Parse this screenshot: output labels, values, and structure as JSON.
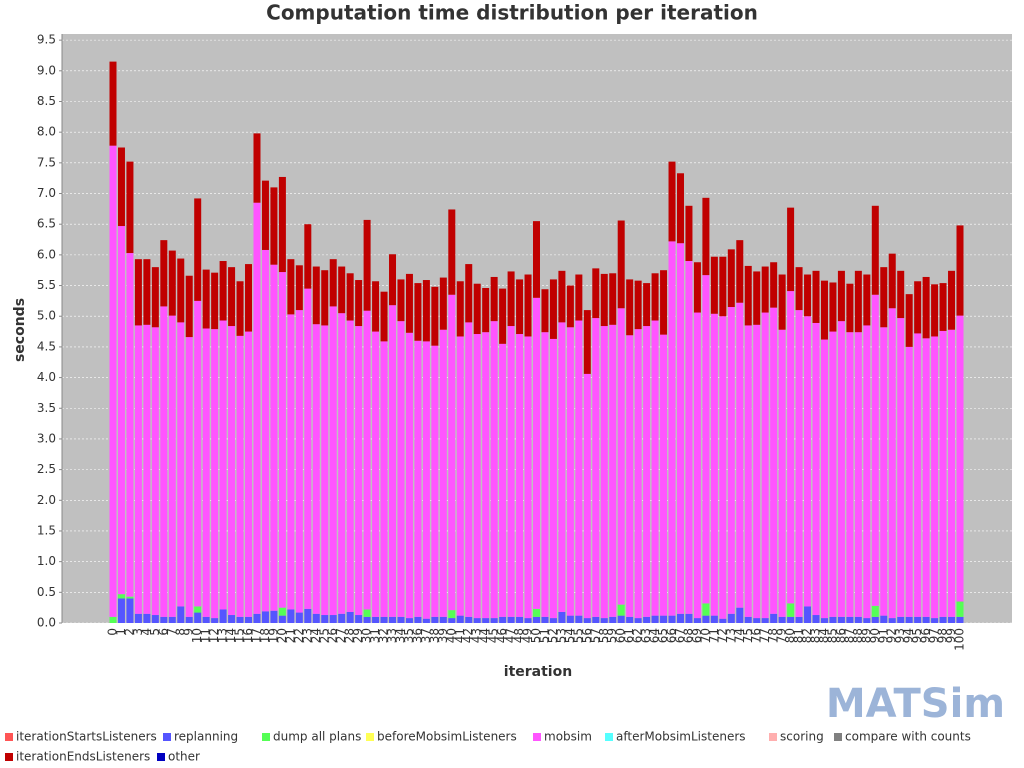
{
  "chart_data": {
    "type": "stacked_bar",
    "title": "Computation time distribution per iteration",
    "x_label": "iteration",
    "y_label": "seconds",
    "logo": "MATSim",
    "categories": [
      "0",
      "1",
      "2",
      "3",
      "4",
      "5",
      "6",
      "7",
      "8",
      "9",
      "10",
      "11",
      "12",
      "13",
      "14",
      "15",
      "16",
      "17",
      "18",
      "19",
      "20",
      "21",
      "22",
      "23",
      "24",
      "25",
      "26",
      "27",
      "28",
      "29",
      "30",
      "31",
      "32",
      "33",
      "34",
      "35",
      "36",
      "37",
      "38",
      "39",
      "40",
      "41",
      "42",
      "43",
      "44",
      "45",
      "46",
      "47",
      "48",
      "49",
      "50",
      "51",
      "52",
      "53",
      "54",
      "55",
      "56",
      "57",
      "58",
      "59",
      "60",
      "61",
      "62",
      "63",
      "64",
      "65",
      "66",
      "67",
      "68",
      "69",
      "70",
      "71",
      "72",
      "73",
      "74",
      "75",
      "76",
      "77",
      "78",
      "79",
      "80",
      "81",
      "82",
      "83",
      "84",
      "85",
      "86",
      "87",
      "88",
      "89",
      "90",
      "91",
      "92",
      "93",
      "94",
      "95",
      "96",
      "97",
      "98",
      "99",
      "100"
    ],
    "ylim": [
      0,
      9.6
    ],
    "yticks": [
      {
        "value": 0,
        "label": "0.0"
      },
      0.5,
      {
        "value": 1,
        "label": "1.0"
      },
      1.5,
      {
        "value": 2,
        "label": "2.0"
      },
      2.5,
      {
        "value": 3,
        "label": "3.0"
      },
      3.5,
      {
        "value": 4,
        "label": "4.0"
      },
      4.5,
      {
        "value": 5,
        "label": "5.0"
      },
      5.5,
      {
        "value": 6,
        "label": "6.0"
      },
      6.5,
      {
        "value": 7,
        "label": "7.0"
      },
      7.5,
      {
        "value": 8,
        "label": "8.0"
      },
      8.5,
      {
        "value": 9,
        "label": "9.0"
      },
      9.5
    ],
    "grid": true,
    "series": [
      {
        "name": "iterationStartsListeners",
        "color": "#ff5555",
        "values": [
          0,
          0,
          0,
          0,
          0,
          0,
          0,
          0,
          0,
          0,
          0,
          0,
          0,
          0,
          0,
          0,
          0,
          0,
          0,
          0,
          0,
          0,
          0,
          0,
          0,
          0,
          0,
          0,
          0,
          0,
          0,
          0,
          0,
          0,
          0,
          0,
          0,
          0,
          0,
          0,
          0,
          0,
          0,
          0,
          0,
          0,
          0,
          0,
          0,
          0,
          0,
          0,
          0,
          0,
          0,
          0,
          0,
          0,
          0,
          0,
          0,
          0,
          0,
          0,
          0,
          0,
          0,
          0,
          0,
          0,
          0,
          0,
          0,
          0,
          0,
          0,
          0,
          0,
          0,
          0,
          0,
          0,
          0,
          0,
          0,
          0,
          0,
          0,
          0,
          0,
          0,
          0,
          0,
          0,
          0,
          0,
          0,
          0,
          0,
          0,
          0
        ]
      },
      {
        "name": "replanning",
        "color": "#5555ff",
        "values": [
          0,
          0.4,
          0.4,
          0.15,
          0.15,
          0.13,
          0.1,
          0.1,
          0.27,
          0.1,
          0.17,
          0.1,
          0.08,
          0.22,
          0.13,
          0.1,
          0.1,
          0.15,
          0.19,
          0.2,
          0.12,
          0.22,
          0.17,
          0.23,
          0.15,
          0.13,
          0.13,
          0.15,
          0.18,
          0.13,
          0.1,
          0.1,
          0.1,
          0.1,
          0.1,
          0.08,
          0.1,
          0.07,
          0.1,
          0.1,
          0.08,
          0.12,
          0.1,
          0.08,
          0.08,
          0.08,
          0.1,
          0.1,
          0.1,
          0.08,
          0.1,
          0.1,
          0.08,
          0.18,
          0.12,
          0.12,
          0.08,
          0.1,
          0.08,
          0.1,
          0.12,
          0.1,
          0.08,
          0.1,
          0.12,
          0.12,
          0.12,
          0.15,
          0.15,
          0.08,
          0.12,
          0.12,
          0.07,
          0.15,
          0.25,
          0.1,
          0.08,
          0.08,
          0.15,
          0.1,
          0.1,
          0.1,
          0.27,
          0.13,
          0.08,
          0.1,
          0.1,
          0.1,
          0.1,
          0.08,
          0.1,
          0.12,
          0.08,
          0.1,
          0.1,
          0.1,
          0.1,
          0.08,
          0.1,
          0.1,
          0.1
        ]
      },
      {
        "name": "dump all plans",
        "color": "#55ff55",
        "values": [
          0.1,
          0.07,
          0.03,
          0,
          0,
          0,
          0,
          0,
          0,
          0,
          0.1,
          0,
          0,
          0,
          0,
          0,
          0,
          0,
          0,
          0,
          0.13,
          0,
          0,
          0,
          0,
          0,
          0,
          0,
          0,
          0,
          0.12,
          0,
          0,
          0,
          0,
          0,
          0,
          0,
          0,
          0,
          0.13,
          0,
          0,
          0,
          0,
          0,
          0,
          0,
          0,
          0,
          0.13,
          0,
          0,
          0,
          0,
          0,
          0,
          0,
          0,
          0,
          0.18,
          0,
          0,
          0,
          0,
          0,
          0,
          0,
          0,
          0,
          0.2,
          0,
          0,
          0,
          0,
          0,
          0,
          0,
          0,
          0,
          0.22,
          0,
          0,
          0,
          0,
          0,
          0,
          0,
          0,
          0,
          0.18,
          0,
          0,
          0,
          0,
          0,
          0,
          0,
          0,
          0,
          0.25
        ]
      },
      {
        "name": "beforeMobsimListeners",
        "color": "#ffff55",
        "values": [
          0,
          0,
          0,
          0,
          0,
          0,
          0,
          0,
          0,
          0,
          0,
          0,
          0,
          0,
          0,
          0,
          0,
          0,
          0,
          0,
          0,
          0,
          0,
          0,
          0,
          0,
          0,
          0,
          0,
          0,
          0,
          0,
          0,
          0,
          0,
          0,
          0,
          0,
          0,
          0,
          0,
          0,
          0,
          0,
          0,
          0,
          0,
          0,
          0,
          0,
          0,
          0,
          0,
          0,
          0,
          0,
          0,
          0,
          0,
          0,
          0,
          0,
          0,
          0,
          0,
          0,
          0,
          0,
          0,
          0,
          0,
          0,
          0,
          0,
          0,
          0,
          0,
          0,
          0,
          0,
          0,
          0,
          0,
          0,
          0,
          0,
          0,
          0,
          0,
          0,
          0,
          0,
          0,
          0,
          0,
          0,
          0,
          0,
          0,
          0,
          0
        ]
      },
      {
        "name": "mobsim",
        "color": "#ff55ff",
        "values": [
          7.68,
          6.0,
          5.6,
          4.7,
          4.71,
          4.69,
          5.06,
          4.91,
          4.63,
          4.56,
          4.98,
          4.7,
          4.71,
          4.71,
          4.71,
          4.58,
          4.65,
          6.7,
          5.89,
          5.64,
          5.47,
          4.81,
          4.93,
          5.22,
          4.72,
          4.72,
          5.03,
          4.9,
          4.75,
          4.71,
          4.87,
          4.65,
          4.49,
          5.08,
          4.82,
          4.65,
          4.5,
          4.52,
          4.42,
          4.68,
          5.14,
          4.55,
          4.8,
          4.63,
          4.66,
          4.84,
          4.45,
          4.74,
          4.61,
          4.59,
          5.07,
          4.64,
          4.55,
          4.72,
          4.7,
          4.81,
          3.98,
          4.87,
          4.76,
          4.76,
          4.83,
          4.59,
          4.71,
          4.74,
          4.81,
          4.58,
          6.1,
          6.04,
          5.75,
          4.98,
          5.35,
          4.92,
          4.93,
          5.0,
          4.97,
          4.75,
          4.78,
          4.98,
          4.99,
          4.68,
          5.09,
          5.0,
          4.73,
          4.76,
          4.54,
          4.65,
          4.82,
          4.64,
          4.64,
          4.77,
          5.07,
          4.7,
          5.05,
          4.87,
          4.4,
          4.62,
          4.54,
          4.59,
          4.66,
          4.68,
          4.66
        ]
      },
      {
        "name": "afterMobsimListeners",
        "color": "#55ffff",
        "values": [
          0,
          0,
          0,
          0,
          0,
          0,
          0,
          0,
          0,
          0,
          0,
          0,
          0,
          0,
          0,
          0,
          0,
          0,
          0,
          0,
          0,
          0,
          0,
          0,
          0,
          0,
          0,
          0,
          0,
          0,
          0,
          0,
          0,
          0,
          0,
          0,
          0,
          0,
          0,
          0,
          0,
          0,
          0,
          0,
          0,
          0,
          0,
          0,
          0,
          0,
          0,
          0,
          0,
          0,
          0,
          0,
          0,
          0,
          0,
          0,
          0,
          0,
          0,
          0,
          0,
          0,
          0,
          0,
          0,
          0,
          0,
          0,
          0,
          0,
          0,
          0,
          0,
          0,
          0,
          0,
          0,
          0,
          0,
          0,
          0,
          0,
          0,
          0,
          0,
          0,
          0,
          0,
          0,
          0,
          0,
          0,
          0,
          0,
          0,
          0,
          0
        ]
      },
      {
        "name": "scoring",
        "color": "#ffafaf",
        "values": [
          0,
          0,
          0,
          0,
          0,
          0,
          0,
          0,
          0,
          0,
          0,
          0,
          0,
          0,
          0,
          0,
          0,
          0,
          0,
          0,
          0,
          0,
          0,
          0,
          0,
          0,
          0,
          0,
          0,
          0,
          0,
          0,
          0,
          0,
          0,
          0,
          0,
          0,
          0,
          0,
          0,
          0,
          0,
          0,
          0,
          0,
          0,
          0,
          0,
          0,
          0,
          0,
          0,
          0,
          0,
          0,
          0,
          0,
          0,
          0,
          0,
          0,
          0,
          0,
          0,
          0,
          0,
          0,
          0,
          0,
          0,
          0,
          0,
          0,
          0,
          0,
          0,
          0,
          0,
          0,
          0,
          0,
          0,
          0,
          0,
          0,
          0,
          0,
          0,
          0,
          0,
          0,
          0,
          0,
          0,
          0,
          0,
          0,
          0,
          0,
          0
        ]
      },
      {
        "name": "compare with counts",
        "color": "#808080",
        "values": [
          0,
          0,
          0,
          0,
          0,
          0,
          0,
          0,
          0,
          0,
          0,
          0,
          0,
          0,
          0,
          0,
          0,
          0,
          0,
          0,
          0,
          0,
          0,
          0,
          0,
          0,
          0,
          0,
          0,
          0,
          0,
          0,
          0,
          0,
          0,
          0,
          0,
          0,
          0,
          0,
          0,
          0,
          0,
          0,
          0,
          0,
          0,
          0,
          0,
          0,
          0,
          0,
          0,
          0,
          0,
          0,
          0,
          0,
          0,
          0,
          0,
          0,
          0,
          0,
          0,
          0,
          0,
          0,
          0,
          0,
          0,
          0,
          0,
          0,
          0,
          0,
          0,
          0,
          0,
          0,
          0,
          0,
          0,
          0,
          0,
          0,
          0,
          0,
          0,
          0,
          0,
          0,
          0,
          0,
          0,
          0,
          0,
          0,
          0,
          0,
          0
        ]
      },
      {
        "name": "iterationEndsListeners",
        "color": "#c00000",
        "values": [
          1.37,
          1.28,
          1.49,
          1.08,
          1.07,
          0.98,
          1.08,
          1.06,
          1.04,
          1.0,
          1.67,
          0.96,
          0.92,
          0.97,
          0.96,
          0.89,
          1.1,
          1.13,
          1.13,
          1.26,
          1.55,
          0.9,
          0.73,
          1.05,
          0.94,
          0.9,
          0.77,
          0.76,
          0.77,
          0.75,
          1.48,
          0.82,
          0.81,
          0.83,
          0.68,
          0.96,
          0.94,
          1.0,
          0.96,
          0.85,
          1.39,
          0.9,
          0.95,
          0.82,
          0.72,
          0.72,
          0.9,
          0.89,
          0.89,
          1.01,
          1.25,
          0.7,
          0.97,
          0.84,
          0.68,
          0.75,
          1.04,
          0.81,
          0.85,
          0.84,
          1.43,
          0.91,
          0.79,
          0.7,
          0.77,
          1.05,
          1.3,
          1.14,
          0.9,
          0.82,
          1.26,
          0.93,
          0.97,
          0.94,
          1.02,
          0.97,
          0.87,
          0.75,
          0.74,
          0.9,
          1.36,
          0.7,
          0.68,
          0.85,
          0.96,
          0.8,
          0.82,
          0.79,
          1.0,
          0.83,
          1.45,
          0.98,
          0.89,
          0.77,
          0.86,
          0.85,
          1.0,
          0.85,
          0.78,
          0.96,
          1.47
        ]
      },
      {
        "name": "other",
        "color": "#0000c0",
        "values": [
          0,
          0,
          0,
          0,
          0,
          0,
          0,
          0,
          0,
          0,
          0,
          0,
          0,
          0,
          0,
          0,
          0,
          0,
          0,
          0,
          0,
          0,
          0,
          0,
          0,
          0,
          0,
          0,
          0,
          0,
          0,
          0,
          0,
          0,
          0,
          0,
          0,
          0,
          0,
          0,
          0,
          0,
          0,
          0,
          0,
          0,
          0,
          0,
          0,
          0,
          0,
          0,
          0,
          0,
          0,
          0,
          0,
          0,
          0,
          0,
          0,
          0,
          0,
          0,
          0,
          0,
          0,
          0,
          0,
          0,
          0,
          0,
          0,
          0,
          0,
          0,
          0,
          0,
          0,
          0,
          0,
          0,
          0,
          0,
          0,
          0,
          0,
          0,
          0,
          0,
          0,
          0,
          0,
          0,
          0,
          0,
          0,
          0,
          0,
          0,
          0
        ]
      }
    ]
  }
}
